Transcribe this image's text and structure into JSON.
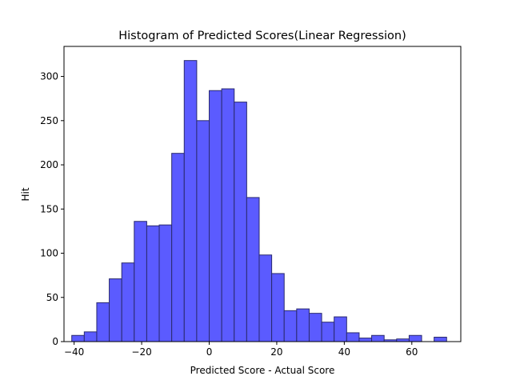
{
  "chart_data": {
    "type": "bar",
    "subtype": "histogram",
    "title": "Histogram of Predicted Scores(Linear Regression)",
    "xlabel": "Predicted Score - Actual Score",
    "ylabel": "Hit",
    "xlim": [
      -43,
      74.5
    ],
    "ylim": [
      0,
      334
    ],
    "xticks": [
      -40,
      -20,
      0,
      20,
      40,
      60
    ],
    "xtick_labels": [
      "−40",
      "−20",
      "0",
      "20",
      "40",
      "60"
    ],
    "yticks": [
      0,
      50,
      100,
      150,
      200,
      250,
      300
    ],
    "ytick_labels": [
      "0",
      "50",
      "100",
      "150",
      "200",
      "250",
      "300"
    ],
    "grid": false,
    "legend": "none",
    "bar_color": "#5b5bff",
    "edge_color": "#2a2a6e",
    "bins": [
      {
        "x0": -40.7,
        "x1": -37.0,
        "value": 7
      },
      {
        "x0": -37.0,
        "x1": -33.3,
        "value": 11
      },
      {
        "x0": -33.3,
        "x1": -29.6,
        "value": 44
      },
      {
        "x0": -29.6,
        "x1": -25.9,
        "value": 71
      },
      {
        "x0": -25.9,
        "x1": -22.2,
        "value": 89
      },
      {
        "x0": -22.2,
        "x1": -18.5,
        "value": 136
      },
      {
        "x0": -18.5,
        "x1": -14.8,
        "value": 131
      },
      {
        "x0": -14.8,
        "x1": -11.1,
        "value": 132
      },
      {
        "x0": -11.1,
        "x1": -7.4,
        "value": 213
      },
      {
        "x0": -7.4,
        "x1": -3.7,
        "value": 318
      },
      {
        "x0": -3.7,
        "x1": 0.0,
        "value": 250
      },
      {
        "x0": 0.0,
        "x1": 3.7,
        "value": 284
      },
      {
        "x0": 3.7,
        "x1": 7.4,
        "value": 286
      },
      {
        "x0": 7.4,
        "x1": 11.1,
        "value": 271
      },
      {
        "x0": 11.1,
        "x1": 14.8,
        "value": 163
      },
      {
        "x0": 14.8,
        "x1": 18.5,
        "value": 98
      },
      {
        "x0": 18.5,
        "x1": 22.2,
        "value": 77
      },
      {
        "x0": 22.2,
        "x1": 25.9,
        "value": 35
      },
      {
        "x0": 25.9,
        "x1": 29.6,
        "value": 37
      },
      {
        "x0": 29.6,
        "x1": 33.3,
        "value": 32
      },
      {
        "x0": 33.3,
        "x1": 37.0,
        "value": 22
      },
      {
        "x0": 37.0,
        "x1": 40.7,
        "value": 28
      },
      {
        "x0": 40.7,
        "x1": 44.4,
        "value": 10
      },
      {
        "x0": 44.4,
        "x1": 48.1,
        "value": 4
      },
      {
        "x0": 48.1,
        "x1": 51.8,
        "value": 7
      },
      {
        "x0": 51.8,
        "x1": 55.5,
        "value": 2
      },
      {
        "x0": 55.5,
        "x1": 59.2,
        "value": 3
      },
      {
        "x0": 59.2,
        "x1": 62.9,
        "value": 7
      },
      {
        "x0": 62.9,
        "x1": 66.6,
        "value": 0
      },
      {
        "x0": 66.6,
        "x1": 70.3,
        "value": 5
      }
    ]
  }
}
